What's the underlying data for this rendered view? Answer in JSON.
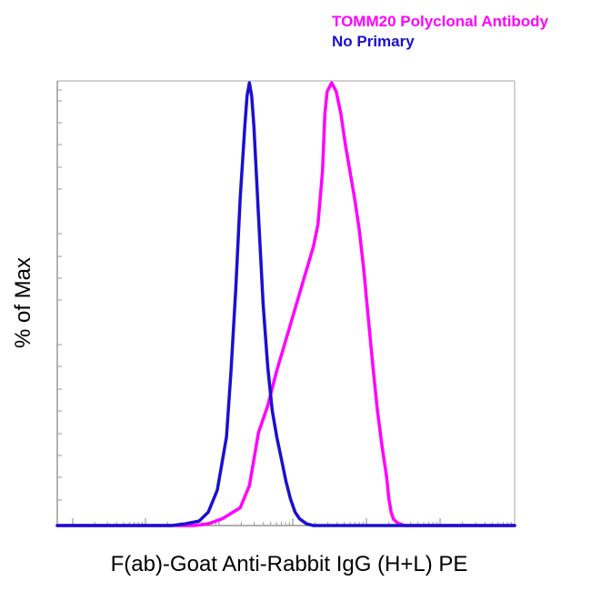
{
  "chart_data": {
    "type": "line",
    "title": "",
    "xlabel": "F(ab)-Goat Anti-Rabbit IgG (H+L) PE",
    "ylabel": "% of Max",
    "xscale": "log",
    "xlim": [
      0,
      1
    ],
    "ylim": [
      0,
      100
    ],
    "grid": false,
    "legend_placement": "top-right",
    "series": [
      {
        "name": "TOMM20 Polyclonal Antibody",
        "color": "#ff00ff",
        "x": [
          0.0,
          0.3,
          0.33,
          0.36,
          0.4,
          0.42,
          0.44,
          0.46,
          0.48,
          0.5,
          0.52,
          0.54,
          0.56,
          0.57,
          0.58,
          0.585,
          0.59,
          0.6,
          0.61,
          0.62,
          0.63,
          0.64,
          0.65,
          0.66,
          0.67,
          0.68,
          0.69,
          0.7,
          0.71,
          0.72,
          0.725,
          0.73,
          0.735,
          0.745,
          0.76,
          0.8,
          1.0
        ],
        "y": [
          0,
          0,
          0.4,
          1.5,
          4,
          9,
          21,
          27,
          35,
          42,
          49,
          56,
          63,
          68,
          80,
          93,
          98,
          100,
          98,
          93,
          86,
          80,
          74,
          67,
          58,
          47,
          36,
          26,
          18,
          11,
          6,
          3,
          1.5,
          0.5,
          0,
          0,
          0
        ]
      },
      {
        "name": "No Primary",
        "color": "#1a10d0",
        "x": [
          0.0,
          0.25,
          0.28,
          0.31,
          0.33,
          0.35,
          0.37,
          0.38,
          0.39,
          0.4,
          0.41,
          0.415,
          0.42,
          0.425,
          0.43,
          0.44,
          0.45,
          0.46,
          0.47,
          0.48,
          0.49,
          0.5,
          0.51,
          0.52,
          0.53,
          0.545,
          0.56,
          0.6,
          1.0
        ],
        "y": [
          0,
          0,
          0.4,
          1,
          3,
          8,
          20,
          35,
          53,
          74,
          90,
          97,
          100,
          97,
          90,
          70,
          50,
          36,
          26,
          20,
          15,
          10,
          6,
          3,
          1.5,
          0.4,
          0,
          0,
          0
        ]
      }
    ]
  }
}
